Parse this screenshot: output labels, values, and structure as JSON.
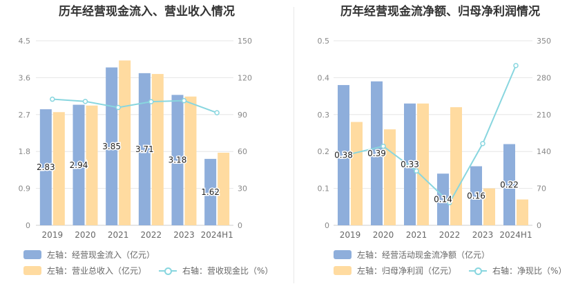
{
  "charts": [
    {
      "title": "历年经营现金流入、营业收入情况",
      "legend": [
        {
          "label": "左轴：经营现金流入（亿元）",
          "color": "#8eaedb"
        },
        {
          "label": "左轴：营业总收入（亿元）",
          "color": "#ffdba0"
        },
        {
          "label": "右轴：营收现金比（%）",
          "color": "#88d6df"
        }
      ]
    },
    {
      "title": "历年经营现金流净额、归母净利润情况",
      "legend": [
        {
          "label": "左轴：经营活动现金流净额（亿元）",
          "color": "#8eaedb"
        },
        {
          "label": "左轴：归母净利润（亿元）",
          "color": "#ffdba0"
        },
        {
          "label": "右轴：净现比（%）",
          "color": "#88d6df"
        }
      ]
    }
  ],
  "chart_data": [
    {
      "type": "bar+line",
      "title": "历年经营现金流入、营业收入情况",
      "categories": [
        "2019",
        "2020",
        "2021",
        "2022",
        "2023",
        "2024H1"
      ],
      "left_axis": {
        "min": 0,
        "max": 4.5,
        "ticks": [
          "0",
          "0.9",
          "1.8",
          "2.7",
          "3.6",
          "4.5"
        ]
      },
      "right_axis": {
        "min": 0,
        "max": 150,
        "ticks": [
          "0",
          "30",
          "60",
          "90",
          "120",
          "150"
        ]
      },
      "series": [
        {
          "name": "经营现金流入（亿元）",
          "axis": "left",
          "kind": "bar",
          "color": "#8eaedb",
          "values": [
            2.83,
            2.94,
            3.85,
            3.71,
            3.18,
            1.62
          ],
          "labels": [
            "2.83",
            "2.94",
            "3.85",
            "3.71",
            "3.18",
            "1.62"
          ]
        },
        {
          "name": "营业总收入（亿元）",
          "axis": "left",
          "kind": "bar",
          "color": "#ffdba0",
          "values": [
            2.76,
            2.92,
            4.02,
            3.69,
            3.14,
            1.77
          ]
        },
        {
          "name": "营收现金比（%）",
          "axis": "right",
          "kind": "line",
          "color": "#88d6df",
          "values": [
            102.5,
            100.7,
            95.8,
            100.5,
            101.3,
            91.5
          ]
        }
      ]
    },
    {
      "type": "bar+line",
      "title": "历年经营现金流净额、归母净利润情况",
      "categories": [
        "2019",
        "2020",
        "2021",
        "2022",
        "2023",
        "2024H1"
      ],
      "left_axis": {
        "min": 0,
        "max": 0.5,
        "ticks": [
          "0",
          "0.1",
          "0.2",
          "0.3",
          "0.4",
          "0.5"
        ]
      },
      "right_axis": {
        "min": 0,
        "max": 350,
        "ticks": [
          "0",
          "70",
          "140",
          "210",
          "280",
          "350"
        ]
      },
      "series": [
        {
          "name": "经营活动现金流净额（亿元）",
          "axis": "left",
          "kind": "bar",
          "color": "#8eaedb",
          "values": [
            0.38,
            0.39,
            0.33,
            0.14,
            0.16,
            0.22
          ],
          "labels": [
            "0.38",
            "0.39",
            "0.33",
            "0.14",
            "0.16",
            "0.22"
          ]
        },
        {
          "name": "归母净利润（亿元）",
          "axis": "left",
          "kind": "bar",
          "color": "#ffdba0",
          "values": [
            0.28,
            0.26,
            0.33,
            0.32,
            0.1,
            0.07
          ]
        },
        {
          "name": "净现比（%）",
          "axis": "right",
          "kind": "line",
          "color": "#88d6df",
          "values": [
            135,
            150,
            103,
            43,
            155,
            303
          ]
        }
      ]
    }
  ]
}
